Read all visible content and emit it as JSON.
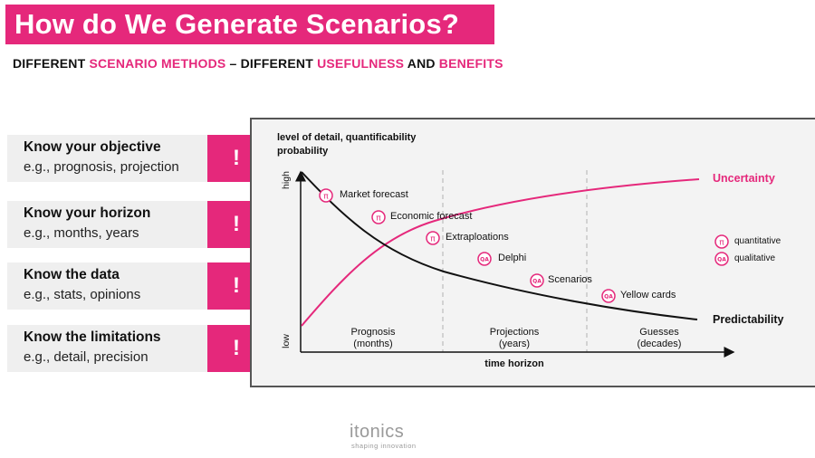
{
  "title": "How do We Generate Scenarios?",
  "subtitle": {
    "p1": "DIFFERENT ",
    "p2": "SCENARIO METHODS",
    "p3": " – DIFFERENT ",
    "p4": "USEFULNESS",
    "p5": " AND ",
    "p6": "BENEFITS"
  },
  "cards": [
    {
      "heading": "Know your objective",
      "sub": "e.g., prognosis, projection",
      "mark": "!"
    },
    {
      "heading": "Know your horizon",
      "sub": "e.g., months, years",
      "mark": "!"
    },
    {
      "heading": "Know the data",
      "sub": "e.g., stats, opinions",
      "mark": "!"
    },
    {
      "heading": "Know the limitations",
      "sub": "e.g., detail, precision",
      "mark": "!"
    }
  ],
  "chart": {
    "ylabel_line1": "level of detail, quantificability",
    "ylabel_line2": "probability",
    "y_high": "high",
    "y_low": "low",
    "xlabel": "time horizon",
    "uncertainty_label": "Uncertainty",
    "predictability_label": "Predictability",
    "phases": [
      {
        "name": "Prognosis",
        "span": "(months)"
      },
      {
        "name": "Projections",
        "span": "(years)"
      },
      {
        "name": "Guesses",
        "span": "(decades)"
      }
    ],
    "methods": [
      {
        "label": "Market forecast",
        "icon": "π"
      },
      {
        "label": "Economic forecast",
        "icon": "π"
      },
      {
        "label": "Extraploations",
        "icon": "π"
      },
      {
        "label": "Delphi",
        "icon": "QA"
      },
      {
        "label": "Scenarios",
        "icon": "QA"
      },
      {
        "label": "Yellow cards",
        "icon": "QA"
      }
    ],
    "legend": [
      {
        "icon": "π",
        "label": "quantitative"
      },
      {
        "icon": "QA",
        "label": "qualitative"
      }
    ]
  },
  "logo": {
    "name": "itonics",
    "tagline": "shaping innovation"
  },
  "colors": {
    "accent": "#e5287b",
    "curve": "#111111",
    "panel": "#f3f3f3"
  }
}
